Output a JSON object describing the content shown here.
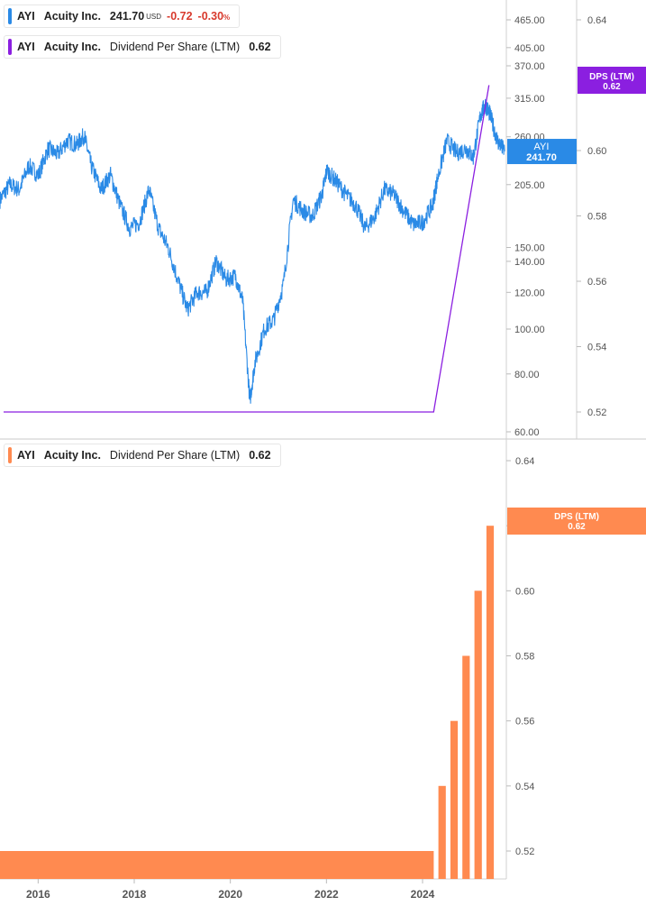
{
  "colors": {
    "price_line": "#2a8ae6",
    "dps_line": "#8b1fe0",
    "dps_bar": "#ff8a50",
    "negative": "#d83a2d",
    "axis_text": "#555555",
    "grid": "#e0e0e0"
  },
  "legend_top_price": {
    "ticker": "AYI",
    "name": "Acuity Inc.",
    "price": "241.70",
    "currency": "USD",
    "change": "-0.72",
    "change_pct": "-0.30",
    "pct_sign": "%"
  },
  "legend_top_dps": {
    "ticker": "AYI",
    "name": "Acuity Inc.",
    "metric": "Dividend Per Share (LTM)",
    "value": "0.62"
  },
  "legend_bottom_dps": {
    "ticker": "AYI",
    "name": "Acuity Inc.",
    "metric": "Dividend Per Share (LTM)",
    "value": "0.62"
  },
  "badges": {
    "price": {
      "line1": "AYI",
      "line2": "241.70"
    },
    "dps_top": {
      "line1": "DPS (LTM)",
      "line2": "0.62"
    },
    "dps_bottom": {
      "line1": "DPS (LTM)",
      "line2": "0.62"
    }
  },
  "chart_data": [
    {
      "type": "line",
      "scale": "log",
      "series": [
        {
          "name": "AYI",
          "x": [
            2015.0,
            2015.2,
            2015.4,
            2015.6,
            2015.8,
            2016.0,
            2016.2,
            2016.4,
            2016.6,
            2016.75,
            2016.9,
            2017.1,
            2017.3,
            2017.5,
            2017.7,
            2017.9,
            2018.1,
            2018.3,
            2018.5,
            2018.7,
            2018.9,
            2019.1,
            2019.3,
            2019.5,
            2019.7,
            2019.9,
            2020.05,
            2020.2,
            2020.3,
            2020.5,
            2020.7,
            2020.9,
            2021.1,
            2021.3,
            2021.5,
            2021.7,
            2021.8,
            2022.0,
            2022.2,
            2022.4,
            2022.6,
            2022.8,
            2023.0,
            2023.2,
            2023.4,
            2023.6,
            2023.8,
            2024.0,
            2024.1,
            2024.3,
            2024.5,
            2024.7,
            2024.85,
            2025.0,
            2025.1,
            2025.2,
            2025.35,
            2025.5
          ],
          "y": [
            190,
            205,
            200,
            225,
            215,
            245,
            238,
            255,
            250,
            262,
            225,
            200,
            215,
            185,
            165,
            170,
            200,
            165,
            150,
            128,
            110,
            120,
            120,
            140,
            128,
            130,
            115,
            70,
            84,
            100,
            105,
            125,
            190,
            180,
            175,
            195,
            220,
            208,
            195,
            185,
            165,
            175,
            200,
            195,
            180,
            168,
            170,
            185,
            210,
            255,
            240,
            245,
            235,
            290,
            305,
            290,
            255,
            242
          ]
        }
      ],
      "y_axis_ticks": [
        "465.00",
        "405.00",
        "370.00",
        "315.00",
        "260.00",
        "205.00",
        "150.00",
        "140.00",
        "120.00",
        "100.00",
        "80.00",
        "60.00"
      ]
    },
    {
      "type": "line",
      "series": [
        {
          "name": "Dividend Per Share (LTM)",
          "x": [
            2015.0,
            2019.0,
            2023.95,
            2025.1
          ],
          "y": [
            0.52,
            0.52,
            0.52,
            0.62
          ]
        }
      ],
      "ylim": [
        0.51,
        0.65
      ],
      "y_axis_ticks": [
        "0.64",
        "0.60",
        "0.58",
        "0.56",
        "0.54",
        "0.52"
      ]
    },
    {
      "type": "bar",
      "series": [
        {
          "name": "Dividend Per Share (LTM)",
          "x": [
            2015.0,
            2015.125,
            2015.25,
            2015.375,
            2015.5,
            2015.625,
            2015.75,
            2015.875,
            2016.0,
            2016.125,
            2016.25,
            2016.375,
            2016.5,
            2016.625,
            2016.75,
            2016.875,
            2017.0,
            2017.125,
            2017.25,
            2017.375,
            2017.5,
            2017.625,
            2017.75,
            2017.875,
            2018.0,
            2018.125,
            2018.25,
            2018.375,
            2018.5,
            2018.625,
            2018.75,
            2018.875,
            2019.0,
            2019.125,
            2019.25,
            2019.375,
            2019.5,
            2019.625,
            2019.75,
            2019.875,
            2020.0,
            2020.125,
            2020.25,
            2020.375,
            2020.5,
            2020.625,
            2020.75,
            2020.875,
            2021.0,
            2021.125,
            2021.25,
            2021.375,
            2021.5,
            2021.625,
            2021.75,
            2021.875,
            2022.0,
            2022.125,
            2022.25,
            2022.375,
            2022.5,
            2022.625,
            2022.75,
            2022.875,
            2023.0,
            2023.125,
            2023.25,
            2023.375,
            2023.5,
            2023.625,
            2023.75,
            2023.875,
            2024.125,
            2024.375,
            2024.625,
            2024.875,
            2025.125
          ],
          "y": [
            0.52,
            0.52,
            0.52,
            0.52,
            0.52,
            0.52,
            0.52,
            0.52,
            0.52,
            0.52,
            0.52,
            0.52,
            0.52,
            0.52,
            0.52,
            0.52,
            0.52,
            0.52,
            0.52,
            0.52,
            0.52,
            0.52,
            0.52,
            0.52,
            0.52,
            0.52,
            0.52,
            0.52,
            0.52,
            0.52,
            0.52,
            0.52,
            0.52,
            0.52,
            0.52,
            0.52,
            0.52,
            0.52,
            0.52,
            0.52,
            0.52,
            0.52,
            0.52,
            0.52,
            0.52,
            0.52,
            0.52,
            0.52,
            0.52,
            0.52,
            0.52,
            0.52,
            0.52,
            0.52,
            0.52,
            0.52,
            0.52,
            0.52,
            0.52,
            0.52,
            0.52,
            0.52,
            0.52,
            0.52,
            0.52,
            0.52,
            0.52,
            0.52,
            0.52,
            0.52,
            0.52,
            0.52,
            0.54,
            0.56,
            0.58,
            0.6,
            0.62
          ]
        }
      ],
      "ylim": [
        0.51,
        0.65
      ],
      "y_axis_ticks": [
        "0.64",
        "0.62",
        "0.60",
        "0.58",
        "0.56",
        "0.54",
        "0.52"
      ],
      "x_axis_ticks": [
        "2016",
        "2018",
        "2020",
        "2022",
        "2024"
      ]
    }
  ]
}
